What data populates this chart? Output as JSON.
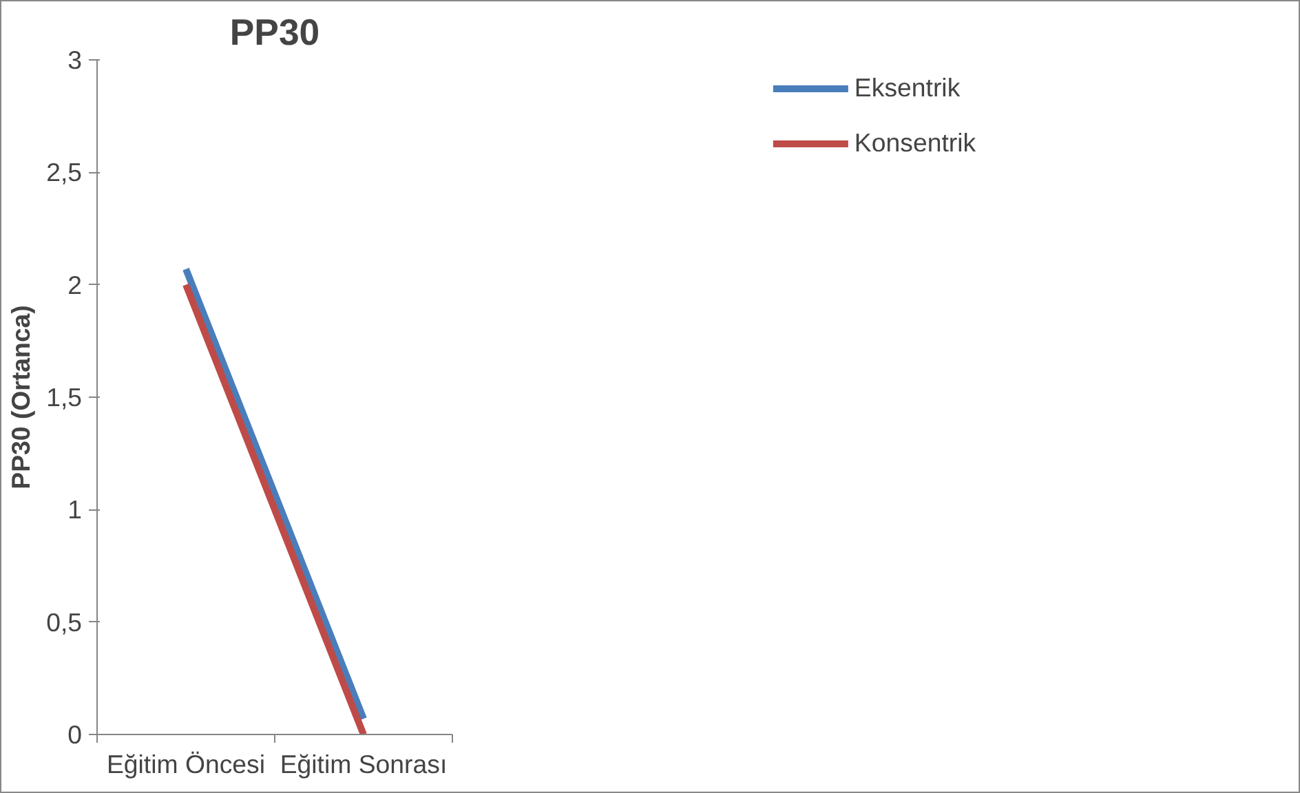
{
  "chart_data": {
    "type": "line",
    "title": "PP30",
    "ylabel": "PP30 (Ortanca)",
    "categories": [
      "Eğitim Öncesi",
      "Eğitim Sonrası"
    ],
    "series": [
      {
        "name": "Eksentrik",
        "color": "#4a7ebb",
        "values": [
          2.07,
          0.07
        ]
      },
      {
        "name": "Konsentrik",
        "color": "#be4b48",
        "values": [
          2.0,
          0.0
        ]
      }
    ],
    "ylim": [
      0,
      3
    ],
    "yticks": [
      0,
      {
        "value": 0.5,
        "label": "0,5"
      },
      1,
      {
        "value": 1.5,
        "label": "1,5"
      },
      2,
      {
        "value": 2.5,
        "label": "2,5"
      },
      3
    ],
    "grid": false,
    "legend": "top right",
    "marker": "none",
    "line_style": "solid"
  }
}
